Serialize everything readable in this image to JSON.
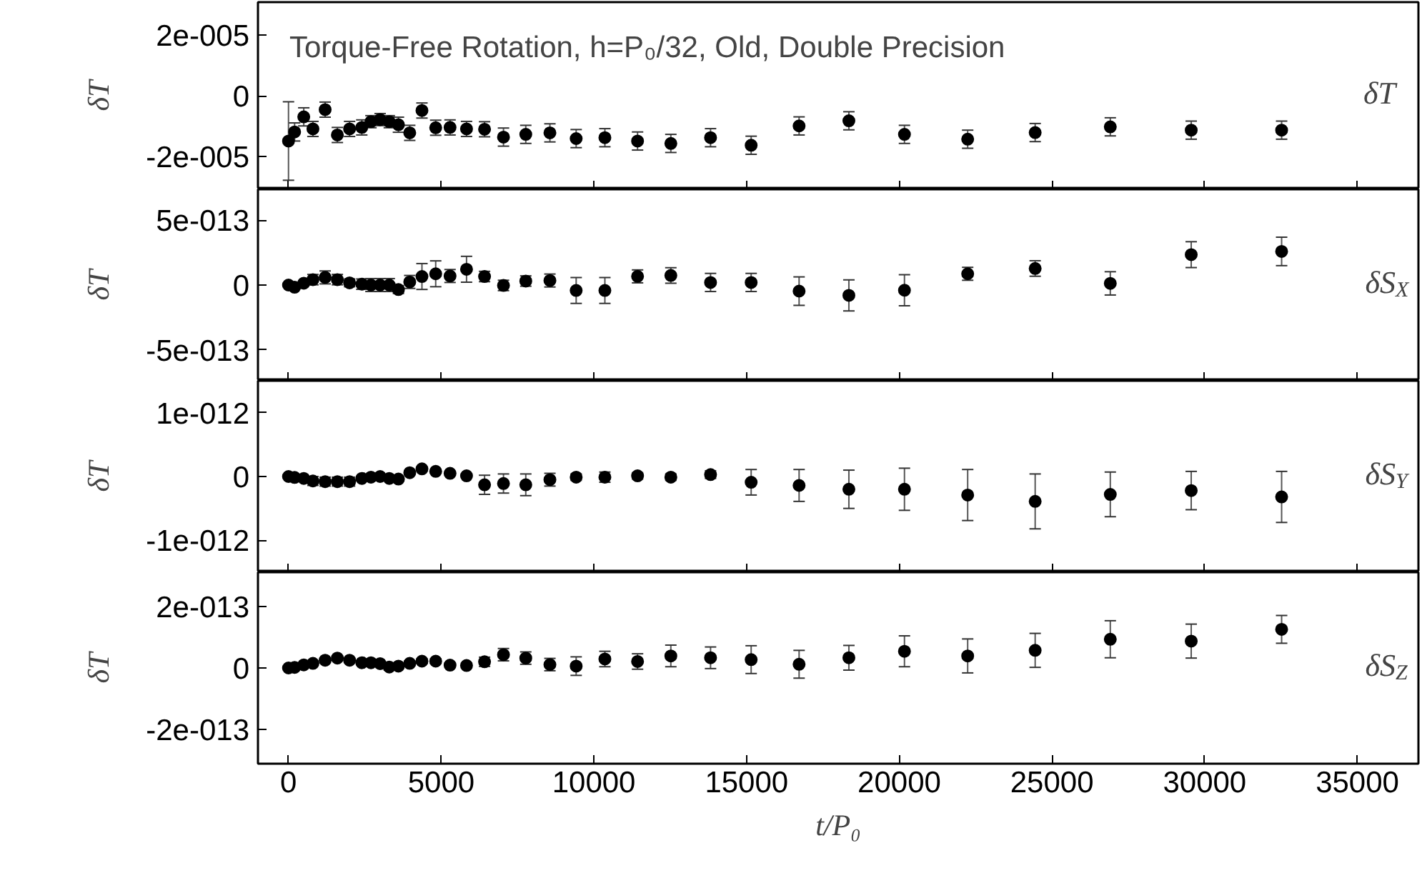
{
  "chart_data": [
    {
      "type": "scatter",
      "title": "Torque-Free Rotation, h=P₀/32, Old, Double Precision",
      "ylabel": "δT",
      "annotations": [
        "δT"
      ],
      "marker": "circle",
      "grid": false,
      "tick_labels": "y",
      "x": [
        0,
        200,
        500,
        800,
        1200,
        1600,
        2000,
        2400,
        2700,
        3000,
        3300,
        3600,
        3970,
        4370,
        4820,
        5290,
        5830,
        6420,
        7040,
        7770,
        8560,
        9420,
        10360,
        11430,
        12520,
        13820,
        15150,
        16720,
        18350,
        20170,
        22240,
        24450,
        26910,
        29560,
        32520
      ],
      "series": [
        {
          "color": "#000000",
          "values": [
            -1.5e-05,
            -1.2e-05,
            -7e-06,
            -1.1e-05,
            -4.6e-06,
            -1.3e-05,
            -1.1e-05,
            -1.05e-05,
            -8.6e-06,
            -7.9e-06,
            -8.6e-06,
            -9.6e-06,
            -1.23e-05,
            -4.9e-06,
            -1.06e-05,
            -1.05e-05,
            -1.1e-05,
            -1.11e-05,
            -1.37e-05,
            -1.28e-05,
            -1.23e-05,
            -1.42e-05,
            -1.39e-05,
            -1.5e-05,
            -1.58e-05,
            -1.39e-05,
            -1.64e-05,
            -1e-05,
            -8.3e-06,
            -1.28e-05,
            -1.44e-05,
            -1.22e-05,
            -1.03e-05,
            -1.14e-05,
            -1.14e-05
          ],
          "errors": [
            1.3e-05,
            3e-06,
            3e-06,
            2.5e-06,
            2.5e-06,
            2.5e-06,
            2.5e-06,
            2.5e-06,
            2e-06,
            2e-06,
            2e-06,
            2.5e-06,
            2.5e-06,
            2.5e-06,
            2.5e-06,
            2.5e-06,
            2.5e-06,
            2.5e-06,
            3e-06,
            3e-06,
            3e-06,
            3e-06,
            3e-06,
            3e-06,
            3e-06,
            3e-06,
            3e-06,
            3e-06,
            3e-06,
            3e-06,
            3e-06,
            3e-06,
            3e-06,
            3e-06,
            3e-06
          ]
        }
      ],
      "xlim": [
        -1000,
        37000
      ],
      "ylim": [
        -3.1e-05,
        3.1e-05
      ],
      "xticks": [
        0,
        5000,
        10000,
        15000,
        20000,
        25000,
        30000,
        35000
      ],
      "yticks": [
        {
          "value": -2e-05,
          "label": "-2e-005"
        },
        {
          "value": 0,
          "label": "0"
        },
        {
          "value": 2e-05,
          "label": "2e-005"
        }
      ]
    },
    {
      "type": "scatter",
      "ylabel": "δT",
      "annotations": [
        "δS$_{X}$"
      ],
      "marker": "circle",
      "grid": false,
      "tick_labels": "y",
      "x": [
        0,
        200,
        500,
        800,
        1200,
        1600,
        2000,
        2400,
        2700,
        3000,
        3300,
        3600,
        3970,
        4370,
        4820,
        5290,
        5830,
        6420,
        7040,
        7770,
        8560,
        9420,
        10360,
        11430,
        12520,
        13820,
        15150,
        16720,
        18350,
        20170,
        22240,
        24450,
        26910,
        29560,
        32520
      ],
      "series": [
        {
          "color": "#000000",
          "values": [
            0,
            -1.7e-14,
            1.4e-14,
            4.2e-14,
            5.9e-14,
            4.2e-14,
            1.7e-14,
            7e-15,
            0,
            0,
            0,
            -3.5e-14,
            2.4e-14,
            6.6e-14,
            8.7e-14,
            7e-14,
            1.22e-13,
            6.6e-14,
            -3e-15,
            3.1e-14,
            3.5e-14,
            -4.2e-14,
            -4.2e-14,
            6.7e-14,
            7.4e-14,
            2e-14,
            2e-14,
            -4.7e-14,
            -8e-14,
            -4e-14,
            8.7e-14,
            1.28e-13,
            1.3e-14,
            2.35e-13,
            2.6e-13
          ],
          "errors": [
            1e-14,
            1e-14,
            2e-14,
            4e-14,
            5e-14,
            4e-14,
            3e-14,
            4e-14,
            5e-14,
            5e-14,
            5e-14,
            3e-14,
            5e-14,
            1e-13,
            1e-13,
            5e-14,
            1e-13,
            4e-14,
            4e-14,
            4e-14,
            5e-14,
            1e-13,
            1e-13,
            5e-14,
            6e-14,
            7e-14,
            7e-14,
            1.1e-13,
            1.2e-13,
            1.2e-13,
            5e-14,
            6e-14,
            9e-14,
            1e-13,
            1.1e-13
          ]
        }
      ],
      "xlim": [
        -1000,
        37000
      ],
      "ylim": [
        -7.4e-13,
        7.4e-13
      ],
      "xticks": [
        0,
        5000,
        10000,
        15000,
        20000,
        25000,
        30000,
        35000
      ],
      "yticks": [
        {
          "value": -5e-13,
          "label": "-5e-013"
        },
        {
          "value": 0,
          "label": "0"
        },
        {
          "value": 5e-13,
          "label": "5e-013"
        }
      ]
    },
    {
      "type": "scatter",
      "ylabel": "δT",
      "annotations": [
        "δS$_{Y}$"
      ],
      "marker": "circle",
      "grid": false,
      "tick_labels": "y",
      "x": [
        0,
        200,
        500,
        800,
        1200,
        1600,
        2000,
        2400,
        2700,
        3000,
        3300,
        3600,
        3970,
        4370,
        4820,
        5290,
        5830,
        6420,
        7040,
        7770,
        8560,
        9420,
        10360,
        11430,
        12520,
        13820,
        15150,
        16720,
        18350,
        20170,
        22240,
        24450,
        26910,
        29560,
        32520
      ],
      "series": [
        {
          "color": "#000000",
          "values": [
            0,
            -1.5e-14,
            -3e-14,
            -7e-14,
            -8e-14,
            -8e-14,
            -8e-14,
            -3e-14,
            -1e-14,
            0,
            -3e-14,
            -4e-14,
            6e-14,
            1.2e-13,
            8e-14,
            5e-14,
            1e-14,
            -1.3e-13,
            -1.1e-13,
            -1.3e-13,
            -5e-14,
            -1e-14,
            -1e-14,
            1e-14,
            -1e-14,
            3e-14,
            -9e-14,
            -1.4e-13,
            -2e-13,
            -2e-13,
            -2.9e-13,
            -3.9e-13,
            -2.8e-13,
            -2.2e-13,
            -3.2e-13
          ],
          "errors": [
            2e-14,
            2e-14,
            3e-14,
            7e-14,
            7e-14,
            7e-14,
            7e-14,
            3e-14,
            2e-14,
            2e-14,
            3e-14,
            3e-14,
            2e-14,
            2e-14,
            2e-14,
            2e-14,
            2e-14,
            1.5e-13,
            1.5e-13,
            1.7e-13,
            1e-13,
            5e-14,
            8e-14,
            5e-14,
            5e-14,
            6e-14,
            2e-13,
            2.5e-13,
            3e-13,
            3.3e-13,
            4e-13,
            4.3e-13,
            3.5e-13,
            3e-13,
            4e-13
          ]
        }
      ],
      "xlim": [
        -1000,
        37000
      ],
      "ylim": [
        -1.5e-12,
        1.5e-12
      ],
      "xticks": [
        0,
        5000,
        10000,
        15000,
        20000,
        25000,
        30000,
        35000
      ],
      "yticks": [
        {
          "value": -1e-12,
          "label": "-1e-012"
        },
        {
          "value": 0,
          "label": "0"
        },
        {
          "value": 1e-12,
          "label": "1e-012"
        }
      ]
    },
    {
      "type": "scatter",
      "ylabel": "δT",
      "xlabel": "t/P₀",
      "annotations": [
        "δS$_{Z}$"
      ],
      "marker": "circle",
      "grid": false,
      "x": [
        0,
        200,
        500,
        800,
        1200,
        1600,
        2000,
        2400,
        2700,
        3000,
        3300,
        3600,
        3970,
        4370,
        4820,
        5290,
        5830,
        6420,
        7040,
        7770,
        8560,
        9420,
        10360,
        11430,
        12520,
        13820,
        15150,
        16720,
        18350,
        20170,
        22240,
        24450,
        26910,
        29560,
        32520
      ],
      "series": [
        {
          "color": "#000000",
          "values": [
            0,
            2e-15,
            1e-14,
            1.5e-14,
            2.5e-14,
            3.2e-14,
            2.5e-14,
            1.7e-14,
            1.7e-14,
            1.4e-14,
            3e-15,
            6e-15,
            1.5e-14,
            2.2e-14,
            2.2e-14,
            9e-15,
            8e-15,
            2e-14,
            4.3e-14,
            3.2e-14,
            1.1e-14,
            6e-15,
            2.9e-14,
            2.1e-14,
            3.9e-14,
            3.3e-14,
            2.7e-14,
            1.2e-14,
            3.3e-14,
            5.4e-14,
            3.9e-14,
            5.7e-14,
            9.3e-14,
            8.7e-14,
            1.25e-13
          ],
          "errors": [
            3e-15,
            3e-15,
            4e-15,
            5e-15,
            5e-15,
            5e-15,
            5e-15,
            5e-15,
            5e-15,
            6e-15,
            1e-14,
            6e-15,
            8e-15,
            8e-15,
            8e-15,
            8e-15,
            8e-15,
            1.5e-14,
            2e-14,
            2e-14,
            2e-14,
            3e-14,
            2.5e-14,
            2.5e-14,
            3.5e-14,
            3.5e-14,
            4.5e-14,
            4.5e-14,
            4e-14,
            5e-14,
            5.5e-14,
            5.5e-14,
            6e-14,
            5.5e-14,
            4.5e-14
          ]
        }
      ],
      "xlim": [
        -1000,
        37000
      ],
      "ylim": [
        -3.1e-13,
        3.1e-13
      ],
      "xticks": [
        0,
        5000,
        10000,
        15000,
        20000,
        25000,
        30000,
        35000
      ],
      "yticks": [
        {
          "value": -2e-13,
          "label": "-2e-013"
        },
        {
          "value": 0,
          "label": "0"
        },
        {
          "value": 2e-13,
          "label": "2e-013"
        }
      ]
    }
  ]
}
